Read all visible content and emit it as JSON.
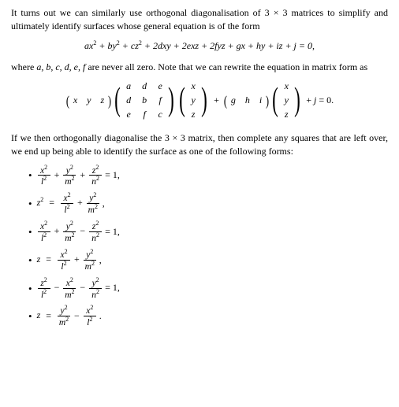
{
  "para1": "It turns out we can similarly use orthogonal diagonalisation of 3 × 3 matrices to simplify and ultimately identify surfaces whose general equation is of the form",
  "eq1": {
    "t1": "ax",
    "t2": " + by",
    "t3": " + cz",
    "t4": " + 2dxy + 2exz + 2fyz + gx + hy + iz + j = 0,"
  },
  "para2_a": "where ",
  "para2_vars": "a, b, c, d, e, f",
  "para2_b": " are never all zero.  Note that we can rewrite the equation in matrix form as",
  "mat": {
    "row_vec1": [
      "x",
      "y",
      "z"
    ],
    "A": [
      [
        "a",
        "d",
        "e"
      ],
      [
        "d",
        "b",
        "f"
      ],
      [
        "e",
        "f",
        "c"
      ]
    ],
    "col": [
      "x",
      "y",
      "z"
    ],
    "row_vec2": [
      "g",
      "h",
      "i"
    ],
    "tail_var": "j",
    "tail_rest": " = 0."
  },
  "para3": "If we then orthogonally diagonalise the 3 × 3 matrix, then complete any squares that are left over, we end up being able to identify the surface as one of the following forms:",
  "fr": {
    "x2": "x",
    "y2": "y",
    "z2": "z",
    "l2": "l",
    "m2": "m",
    "n2": "n"
  },
  "items": [
    {
      "lhs": "",
      "terms": [
        [
          "x",
          "l",
          "+"
        ],
        [
          "y",
          "m",
          "+"
        ],
        [
          "z",
          "n",
          ""
        ]
      ],
      "rhs": " = 1,"
    },
    {
      "lhs": "z² = ",
      "terms": [
        [
          "x",
          "l",
          "+"
        ],
        [
          "y",
          "m",
          ""
        ]
      ],
      "rhs": ","
    },
    {
      "lhs": "",
      "terms": [
        [
          "x",
          "l",
          "+"
        ],
        [
          "y",
          "m",
          "−"
        ],
        [
          "z",
          "n",
          ""
        ]
      ],
      "rhs": " = 1,"
    },
    {
      "lhs": "z = ",
      "terms": [
        [
          "x",
          "l",
          "+"
        ],
        [
          "y",
          "m",
          ""
        ]
      ],
      "rhs": ","
    },
    {
      "lhs": "",
      "terms": [
        [
          "z",
          "l",
          "−"
        ],
        [
          "x",
          "m",
          "−"
        ],
        [
          "y",
          "n",
          ""
        ]
      ],
      "rhs": " = 1,"
    },
    {
      "lhs": "z = ",
      "terms": [
        [
          "y",
          "m",
          "−"
        ],
        [
          "x",
          "l",
          ""
        ]
      ],
      "rhs": "."
    }
  ]
}
